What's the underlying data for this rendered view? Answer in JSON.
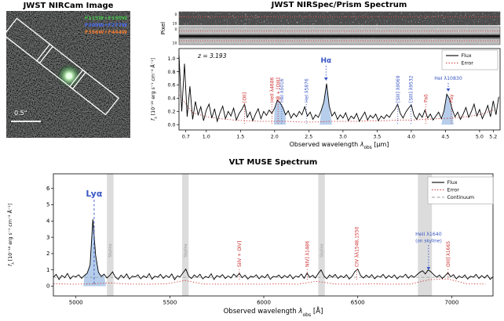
{
  "nircam": {
    "title": "JWST NIRCam Image",
    "filters": [
      {
        "label": "F115W+F150W",
        "color": "#45c04a"
      },
      {
        "label": "F200W+F277W",
        "color": "#4a6cf0"
      },
      {
        "label": "F356W+F444W",
        "color": "#f07a30"
      }
    ],
    "scale_label": "0.5\""
  },
  "chart_data": [
    {
      "id": "nirspec-prism-spectrum",
      "type": "line",
      "title": "JWST NIRSpec/Prism Spectrum",
      "redshift_label": "z = 3.193",
      "pixel_axis_label": "Pixel",
      "pixel_ticks": [
        "0",
        "10"
      ],
      "xlabel": "Observed wavelength λ_obs [μm]",
      "xlabel_parts": [
        {
          "t": "Observed wavelength "
        },
        {
          "t": "λ",
          "i": 1
        },
        {
          "t": "obs",
          "sub": 1
        },
        {
          "t": " [μm]"
        }
      ],
      "ylabel": "f_λ [10^-20 erg s^-1 cm^-2 Å^-1]",
      "ylabel_parts": [
        {
          "t": "f",
          "i": 1
        },
        {
          "t": "λ",
          "sub": 1
        },
        {
          "t": " [10⁻²⁰ erg s⁻¹ cm⁻² Å⁻¹]"
        }
      ],
      "xlim": [
        0.6,
        5.3
      ],
      "ylim": [
        -0.08,
        1.15
      ],
      "xticks": [
        0.7,
        1.0,
        1.5,
        2.0,
        2.5,
        3.0,
        3.5,
        4.0,
        4.5,
        5.0,
        5.2
      ],
      "yticks": [
        0.0,
        0.2,
        0.4,
        0.6,
        0.8,
        1.0
      ],
      "series": [
        {
          "name": "Flux",
          "color": "#000000",
          "style": "solid",
          "x_start": 0.6,
          "x_step": 0.04,
          "values": [
            1.05,
            0.2,
            0.92,
            0.12,
            0.58,
            0.08,
            0.35,
            0.15,
            0.27,
            0.06,
            0.22,
            0.31,
            0.1,
            0.24,
            0.05,
            0.18,
            0.28,
            0.09,
            0.2,
            0.13,
            0.25,
            0.07,
            0.17,
            0.23,
            0.31,
            0.11,
            0.19,
            0.06,
            0.16,
            0.24,
            0.09,
            0.2,
            0.14,
            0.22,
            0.17,
            0.25,
            0.37,
            0.33,
            0.26,
            0.15,
            0.21,
            0.1,
            0.17,
            0.12,
            0.2,
            0.15,
            0.27,
            0.13,
            0.19,
            0.08,
            0.15,
            0.11,
            0.21,
            0.34,
            0.62,
            0.28,
            0.13,
            0.19,
            0.08,
            0.15,
            0.1,
            0.18,
            0.06,
            0.13,
            0.09,
            0.17,
            0.05,
            0.12,
            0.19,
            0.07,
            0.14,
            0.1,
            0.16,
            0.06,
            0.13,
            0.09,
            0.15,
            0.11,
            0.18,
            0.23,
            0.31,
            0.17,
            0.1,
            0.19,
            0.25,
            0.3,
            0.14,
            0.08,
            0.17,
            0.11,
            0.22,
            0.1,
            0.16,
            0.07,
            0.13,
            0.19,
            0.09,
            0.21,
            0.46,
            0.39,
            0.23,
            0.12,
            0.19,
            0.08,
            0.16,
            0.26,
            0.11,
            0.2,
            0.31,
            0.13,
            0.23,
            0.09,
            0.18,
            0.29,
            0.12,
            0.36,
            0.15,
            0.42
          ]
        },
        {
          "name": "Error",
          "color": "#cc2a2a",
          "style": "dotted",
          "x_start": 0.6,
          "x_step": 0.2,
          "values": [
            0.45,
            0.18,
            0.12,
            0.09,
            0.07,
            0.06,
            0.05,
            0.05,
            0.05,
            0.04,
            0.04,
            0.05,
            0.05,
            0.05,
            0.06,
            0.06,
            0.07,
            0.07,
            0.08,
            0.09,
            0.1,
            0.12,
            0.15,
            0.22
          ]
        }
      ],
      "shaded_regions": [
        {
          "x0": 1.99,
          "x1": 2.16,
          "color": "#a9c6e8"
        },
        {
          "x0": 2.66,
          "x1": 2.84,
          "color": "#a9c6e8"
        },
        {
          "x0": 4.44,
          "x1": 4.62,
          "color": "#a9c6e8"
        }
      ],
      "annotations": [
        {
          "x": 1.56,
          "label": "[OII]",
          "color": "#cc2a2a",
          "orient": "vertical"
        },
        {
          "x": 1.96,
          "label": "HeII λ4686",
          "color": "#cc2a2a",
          "orient": "vertical"
        },
        {
          "x": 2.05,
          "label": "Hβ + [OIII]",
          "color": "#cc2a2a",
          "orient": "vertical"
        },
        {
          "x": 2.103,
          "label": "HeI λ5016",
          "color": "#3a57c4",
          "orient": "vertical"
        },
        {
          "x": 2.464,
          "label": "HeI λ5876",
          "color": "#3a57c4",
          "orient": "vertical"
        },
        {
          "x": 2.752,
          "label": "Hα",
          "color": "#3a57c4",
          "orient": "horizontal"
        },
        {
          "x": 3.803,
          "label": "[SIII] λ9069",
          "color": "#3a57c4",
          "orient": "vertical"
        },
        {
          "x": 3.997,
          "label": "[SIII] λ9532",
          "color": "#3a57c4",
          "orient": "vertical"
        },
        {
          "x": 4.214,
          "label": "Paδ",
          "color": "#cc2a2a",
          "orient": "vertical"
        },
        {
          "x": 4.542,
          "label": "HeI λ10830",
          "color": "#3a57c4",
          "orient": "horizontal"
        },
        {
          "x": 4.588,
          "label": "Paγ",
          "color": "#cc2a2a",
          "orient": "vertical"
        }
      ],
      "legend": [
        {
          "label": "Flux",
          "color": "#000000",
          "style": "solid"
        },
        {
          "label": "Error",
          "color": "#cc2a2a",
          "style": "dotted"
        }
      ]
    },
    {
      "id": "vlt-muse-spectrum",
      "type": "line",
      "title": "VLT MUSE Spectrum",
      "xlabel": "Observed wavelength λ_obs [Å]",
      "xlabel_parts": [
        {
          "t": "Observed wavelength "
        },
        {
          "t": "λ",
          "i": 1
        },
        {
          "t": "obs",
          "sub": 1
        },
        {
          "t": " [Å]"
        }
      ],
      "ylabel": "f_λ [10^-18 erg s^-1 cm^-2 Å^-1]",
      "ylabel_parts": [
        {
          "t": "f",
          "i": 1
        },
        {
          "t": "λ",
          "sub": 1
        },
        {
          "t": " [10⁻¹⁸ erg s⁻¹ cm⁻² Å⁻¹]"
        }
      ],
      "xlim": [
        4880,
        7220
      ],
      "ylim": [
        -0.6,
        6.9
      ],
      "xticks": [
        5000,
        5500,
        6000,
        6500,
        7000
      ],
      "yticks": [
        0,
        1,
        2,
        3,
        4,
        5,
        6
      ],
      "series": [
        {
          "name": "Flux",
          "color": "#000000",
          "style": "solid",
          "x_start": 4880,
          "x_step": 15,
          "values": [
            0.55,
            0.72,
            0.41,
            0.66,
            0.52,
            0.78,
            0.45,
            0.62,
            0.58,
            0.7,
            0.48,
            0.65,
            0.8,
            1.3,
            4.1,
            1.9,
            0.85,
            0.6,
            0.74,
            0.5,
            0.66,
            0.88,
            0.55,
            0.42,
            0.68,
            0.51,
            0.75,
            0.44,
            0.62,
            0.57,
            0.7,
            0.46,
            0.64,
            0.52,
            0.77,
            0.43,
            0.61,
            0.55,
            0.72,
            0.48,
            0.66,
            0.53,
            0.75,
            0.4,
            0.63,
            0.58,
            0.82,
            1.05,
            0.62,
            0.47,
            0.69,
            0.54,
            0.73,
            0.45,
            0.6,
            0.52,
            0.76,
            0.41,
            0.65,
            0.56,
            0.71,
            0.47,
            0.63,
            0.5,
            0.74,
            0.58,
            0.79,
            0.52,
            0.68,
            0.44,
            0.61,
            0.55,
            0.7,
            0.46,
            0.64,
            0.51,
            0.73,
            0.42,
            0.6,
            0.56,
            0.68,
            0.49,
            0.66,
            0.53,
            0.71,
            0.45,
            0.62,
            0.57,
            0.74,
            0.48,
            0.8,
            0.54,
            0.67,
            0.5,
            0.78,
            1.0,
            0.63,
            0.46,
            0.69,
            0.55,
            0.72,
            0.47,
            0.64,
            0.52,
            0.7,
            0.44,
            0.61,
            0.9,
            1.05,
            0.66,
            0.5,
            0.68,
            0.53,
            0.71,
            0.46,
            0.63,
            0.55,
            0.72,
            0.48,
            0.65,
            0.52,
            0.69,
            0.45,
            0.62,
            0.56,
            0.73,
            0.49,
            0.66,
            0.54,
            0.7,
            0.85,
            0.95,
            0.75,
            1.0,
            0.88,
            0.7,
            0.55,
            0.68,
            0.47,
            0.64,
            0.82,
            0.58,
            0.71,
            0.46,
            0.63,
            0.52,
            0.69,
            0.44,
            0.61,
            0.55,
            0.72,
            0.47,
            0.65,
            0.5,
            0.68,
            0.42,
            0.58
          ]
        },
        {
          "name": "Error",
          "color": "#cc2a2a",
          "style": "dotted",
          "x_start": 4880,
          "x_step": 100,
          "values": [
            0.15,
            0.12,
            0.14,
            0.2,
            0.13,
            0.12,
            0.14,
            0.35,
            0.13,
            0.12,
            0.13,
            0.12,
            0.14,
            0.12,
            0.3,
            0.13,
            0.12,
            0.14,
            0.12,
            0.13,
            0.4,
            0.45,
            0.14,
            0.13
          ]
        },
        {
          "name": "Continuum",
          "color": "#999999",
          "style": "dashed",
          "x_start": 4880,
          "x_step": 2340,
          "values": [
            0.55,
            0.55
          ]
        }
      ],
      "shaded_regions": [
        {
          "x0": 5040,
          "x1": 5160,
          "color": "#a9c6e8"
        }
      ],
      "skyline_bands": [
        {
          "x0": 5165,
          "x1": 5200,
          "label": "Skyline"
        },
        {
          "x0": 5565,
          "x1": 5600,
          "label": "Skyline"
        },
        {
          "x0": 6290,
          "x1": 6325,
          "label": "Skyline"
        },
        {
          "x0": 6820,
          "x1": 6895,
          "label": ""
        }
      ],
      "annotations": [
        {
          "x": 5097,
          "label": "Lyα",
          "color": "#3a57c4",
          "orient": "horizontal"
        },
        {
          "x": 5870,
          "label": "SiIV + OIV]",
          "color": "#cc2a2a",
          "orient": "vertical"
        },
        {
          "x": 6231,
          "label": "NIV] λ1486",
          "color": "#cc2a2a",
          "orient": "vertical"
        },
        {
          "x": 6494,
          "label": "CIV λλ1548,1550",
          "color": "#cc2a2a",
          "orient": "vertical"
        },
        {
          "x": 6877,
          "label": "HeII λ1640",
          "label2": "(on skyline)",
          "color": "#3a57c4",
          "orient": "horizontal"
        },
        {
          "x": 6981,
          "label": "OIII] λ1665",
          "color": "#cc2a2a",
          "orient": "vertical"
        }
      ],
      "legend": [
        {
          "label": "Flux",
          "color": "#000000",
          "style": "solid"
        },
        {
          "label": "Error",
          "color": "#cc2a2a",
          "style": "dotted"
        },
        {
          "label": "Continuum",
          "color": "#999999",
          "style": "dashed"
        }
      ]
    }
  ]
}
